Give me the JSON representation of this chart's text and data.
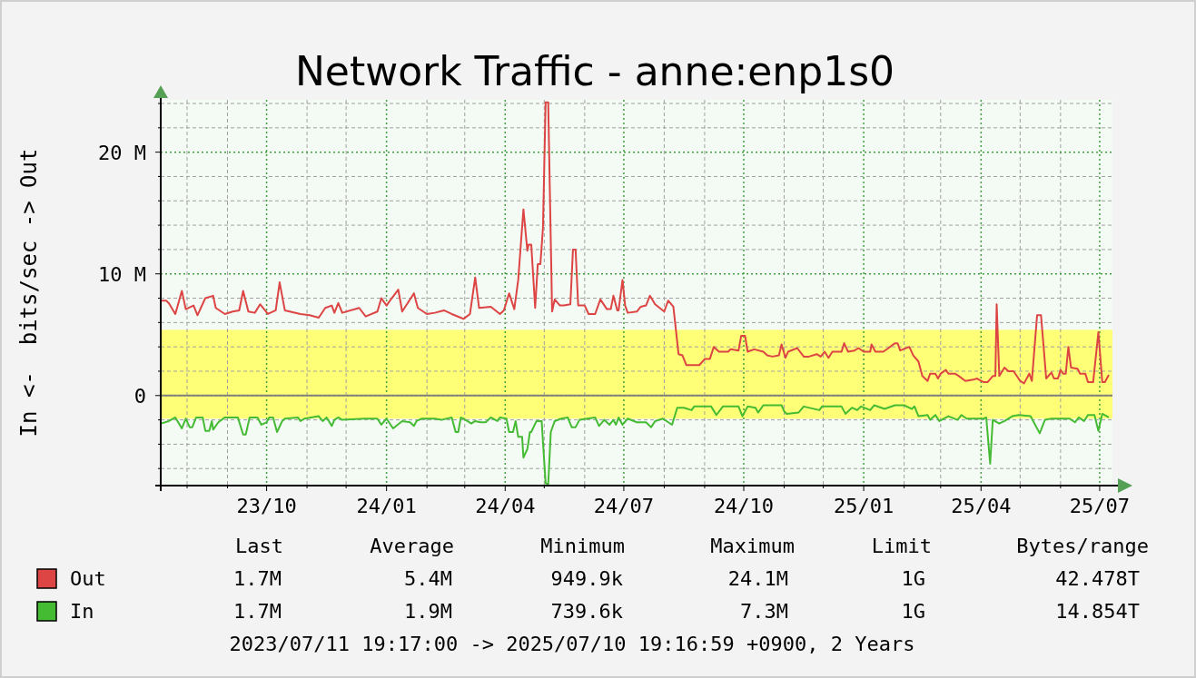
{
  "chart_data": {
    "type": "line",
    "title": "Network Traffic - anne:enp1s0",
    "ylabel": "In <-  bits/sec -> Out",
    "xlim": [
      "2023-07-11T19:17",
      "2025-07-10T19:16"
    ],
    "xticks": [
      {
        "value": "2023-08-01",
        "label": null
      },
      {
        "value": "2023-09-01",
        "label": null
      },
      {
        "value": "2023-10-01",
        "label": "23/10"
      },
      {
        "value": "2023-11-01",
        "label": null
      },
      {
        "value": "2023-12-01",
        "label": null
      },
      {
        "value": "2024-01-01",
        "label": "24/01"
      },
      {
        "value": "2024-02-01",
        "label": null
      },
      {
        "value": "2024-03-01",
        "label": null
      },
      {
        "value": "2024-04-01",
        "label": "24/04"
      },
      {
        "value": "2024-05-01",
        "label": null
      },
      {
        "value": "2024-06-01",
        "label": null
      },
      {
        "value": "2024-07-01",
        "label": "24/07"
      },
      {
        "value": "2024-08-01",
        "label": null
      },
      {
        "value": "2024-09-01",
        "label": null
      },
      {
        "value": "2024-10-01",
        "label": "24/10"
      },
      {
        "value": "2024-11-01",
        "label": null
      },
      {
        "value": "2024-12-01",
        "label": null
      },
      {
        "value": "2025-01-01",
        "label": "25/01"
      },
      {
        "value": "2025-02-01",
        "label": null
      },
      {
        "value": "2025-03-01",
        "label": null
      },
      {
        "value": "2025-04-01",
        "label": "25/04"
      },
      {
        "value": "2025-05-01",
        "label": null
      },
      {
        "value": "2025-06-01",
        "label": null
      },
      {
        "value": "2025-07-01",
        "label": "25/07"
      }
    ],
    "ylim": [
      -7.4,
      24.3
    ],
    "yticks": [
      {
        "value": -6,
        "label": null
      },
      {
        "value": -4,
        "label": null
      },
      {
        "value": -2,
        "label": null
      },
      {
        "value": 0,
        "label": "0"
      },
      {
        "value": 2,
        "label": null
      },
      {
        "value": 4,
        "label": null
      },
      {
        "value": 6,
        "label": null
      },
      {
        "value": 8,
        "label": null
      },
      {
        "value": 10,
        "label": "10 M"
      },
      {
        "value": 12,
        "label": null
      },
      {
        "value": 14,
        "label": null
      },
      {
        "value": 16,
        "label": null
      },
      {
        "value": 18,
        "label": null
      },
      {
        "value": 20,
        "label": "20 M"
      },
      {
        "value": 22,
        "label": null
      },
      {
        "value": 24,
        "label": null
      }
    ],
    "grid": true,
    "legend": "bottom left",
    "bands": [
      {
        "axis": "y",
        "from": -1.9,
        "to": 5.4,
        "color": "#ffff77"
      }
    ],
    "ref_lines": [
      {
        "axis": "y",
        "value": 0,
        "color": "#808080"
      }
    ],
    "series": [
      {
        "name": "Out",
        "color": "#dd4444",
        "x": [
          "2023-07-12",
          "2023-07-16",
          "2023-07-18",
          "2023-07-23",
          "2023-07-28",
          "2023-07-31",
          "2023-08-06",
          "2023-08-09",
          "2023-08-15",
          "2023-08-21",
          "2023-08-23",
          "2023-08-30",
          "2023-09-05",
          "2023-09-10",
          "2023-09-13",
          "2023-09-17",
          "2023-09-22",
          "2023-09-26",
          "2023-10-02",
          "2023-10-08",
          "2023-10-11",
          "2023-10-15",
          "2023-10-27",
          "2023-11-03",
          "2023-11-10",
          "2023-11-15",
          "2023-11-20",
          "2023-11-22",
          "2023-11-25",
          "2023-11-28",
          "2023-12-11",
          "2023-12-16",
          "2023-12-25",
          "2023-12-28",
          "2024-01-01",
          "2024-01-05",
          "2024-01-10",
          "2024-01-13",
          "2024-01-22",
          "2024-01-25",
          "2024-02-01",
          "2024-02-07",
          "2024-02-14",
          "2024-02-20",
          "2024-02-29",
          "2024-03-05",
          "2024-03-09",
          "2024-03-12",
          "2024-03-21",
          "2024-03-28",
          "2024-03-31",
          "2024-04-04",
          "2024-04-08",
          "2024-04-11",
          "2024-04-15",
          "2024-04-18",
          "2024-04-19",
          "2024-04-21",
          "2024-04-24",
          "2024-04-26",
          "2024-04-28",
          "2024-04-30",
          "2024-05-02",
          "2024-05-04",
          "2024-05-07",
          "2024-05-09",
          "2024-05-13",
          "2024-05-16",
          "2024-05-21",
          "2024-05-23",
          "2024-05-25",
          "2024-05-27",
          "2024-06-01",
          "2024-06-04",
          "2024-06-09",
          "2024-06-13",
          "2024-06-18",
          "2024-06-21",
          "2024-06-23",
          "2024-06-26",
          "2024-06-27",
          "2024-06-30",
          "2024-07-02",
          "2024-07-04",
          "2024-07-11",
          "2024-07-14",
          "2024-07-18",
          "2024-07-21",
          "2024-07-25",
          "2024-08-01",
          "2024-08-04",
          "2024-08-08",
          "2024-08-12",
          "2024-08-15",
          "2024-08-18",
          "2024-08-28",
          "2024-09-01",
          "2024-09-05",
          "2024-09-08",
          "2024-09-12",
          "2024-09-19",
          "2024-09-21",
          "2024-09-27",
          "2024-09-29",
          "2024-10-02",
          "2024-10-04",
          "2024-10-09",
          "2024-10-16",
          "2024-10-19",
          "2024-10-23",
          "2024-10-28",
          "2024-10-30",
          "2024-11-02",
          "2024-11-04",
          "2024-11-11",
          "2024-11-16",
          "2024-11-20",
          "2024-11-26",
          "2024-11-29",
          "2024-12-02",
          "2024-12-05",
          "2024-12-08",
          "2024-12-15",
          "2024-12-17",
          "2024-12-20",
          "2024-12-25",
          "2024-12-28",
          "2025-01-01",
          "2025-01-06",
          "2025-01-07",
          "2025-01-10",
          "2025-01-16",
          "2025-01-20",
          "2025-01-25",
          "2025-01-27",
          "2025-01-29",
          "2025-02-05",
          "2025-02-08",
          "2025-02-12",
          "2025-02-15",
          "2025-02-19",
          "2025-02-21",
          "2025-02-25",
          "2025-02-27",
          "2025-03-01",
          "2025-03-05",
          "2025-03-07",
          "2025-03-12",
          "2025-03-15",
          "2025-03-20",
          "2025-03-26",
          "2025-03-29",
          "2025-04-03",
          "2025-04-06",
          "2025-04-10",
          "2025-04-12",
          "2025-04-13",
          "2025-04-15",
          "2025-04-19",
          "2025-04-22",
          "2025-04-26",
          "2025-05-01",
          "2025-05-04",
          "2025-05-08",
          "2025-05-10",
          "2025-05-14",
          "2025-05-17",
          "2025-05-21",
          "2025-05-25",
          "2025-05-27",
          "2025-05-30",
          "2025-06-01",
          "2025-06-03",
          "2025-06-05",
          "2025-06-07",
          "2025-06-09",
          "2025-06-14",
          "2025-06-16",
          "2025-06-20",
          "2025-06-22",
          "2025-06-26",
          "2025-06-30",
          "2025-07-03",
          "2025-07-05",
          "2025-07-08"
        ],
        "values": [
          7.8,
          7.8,
          7.6,
          6.7,
          8.6,
          7.1,
          7.4,
          6.6,
          8.0,
          8.2,
          7.2,
          6.7,
          6.9,
          7.0,
          8.6,
          6.9,
          6.8,
          7.5,
          6.7,
          7.0,
          9.3,
          7.0,
          6.7,
          6.6,
          6.4,
          7.2,
          7.4,
          6.8,
          7.6,
          6.8,
          7.2,
          6.5,
          6.9,
          8.0,
          7.4,
          8.0,
          8.7,
          6.9,
          8.4,
          7.2,
          6.7,
          6.8,
          7.0,
          6.7,
          6.3,
          6.7,
          9.7,
          7.2,
          7.3,
          6.7,
          7.0,
          8.4,
          7.1,
          9.5,
          15.3,
          11.9,
          12.4,
          12.4,
          7.2,
          10.8,
          10.8,
          13.8,
          24.1,
          24.1,
          6.9,
          7.9,
          7.4,
          7.4,
          7.5,
          12.0,
          12.0,
          7.4,
          7.4,
          6.7,
          6.7,
          7.9,
          7.1,
          7.1,
          8.2,
          7.0,
          7.0,
          9.5,
          7.4,
          6.8,
          6.9,
          7.3,
          7.4,
          8.2,
          7.5,
          6.9,
          7.8,
          7.3,
          3.4,
          3.3,
          2.5,
          2.5,
          3.0,
          3.0,
          4.0,
          3.6,
          3.6,
          3.8,
          3.7,
          4.9,
          4.9,
          3.6,
          3.8,
          3.6,
          3.3,
          3.2,
          3.3,
          4.2,
          3.1,
          3.6,
          3.9,
          3.2,
          3.2,
          3.4,
          3.2,
          3.6,
          3.1,
          3.6,
          3.6,
          4.3,
          3.6,
          3.7,
          3.9,
          3.6,
          3.6,
          4.2,
          3.6,
          3.6,
          3.9,
          4.3,
          4.3,
          3.7,
          4.0,
          3.3,
          2.8,
          1.6,
          1.2,
          1.8,
          1.8,
          1.4,
          1.8,
          2.1,
          1.8,
          1.8,
          1.6,
          1.2,
          1.3,
          1.4,
          1.1,
          1.1,
          1.6,
          1.6,
          7.5,
          1.6,
          2.3,
          2.0,
          2.0,
          1.2,
          1.0,
          1.8,
          1.2,
          6.6,
          6.6,
          1.4,
          1.9,
          1.4,
          1.4,
          2.1,
          1.8,
          1.8,
          4.0,
          2.3,
          2.2,
          1.8,
          1.8,
          1.1,
          1.1,
          5.2,
          1.1,
          1.1,
          1.7
        ]
      },
      {
        "name": "In",
        "color": "#44bb33",
        "x": [
          "2023-07-12",
          "2023-07-18",
          "2023-07-23",
          "2023-07-28",
          "2023-07-31",
          "2023-08-03",
          "2023-08-05",
          "2023-08-08",
          "2023-08-13",
          "2023-08-15",
          "2023-08-18",
          "2023-08-20",
          "2023-08-21",
          "2023-08-25",
          "2023-08-30",
          "2023-09-09",
          "2023-09-13",
          "2023-09-15",
          "2023-09-18",
          "2023-09-24",
          "2023-09-27",
          "2023-10-01",
          "2023-10-03",
          "2023-10-06",
          "2023-10-09",
          "2023-10-13",
          "2023-10-15",
          "2023-10-25",
          "2023-10-27",
          "2023-10-30",
          "2023-11-10",
          "2023-11-13",
          "2023-11-16",
          "2023-11-20",
          "2023-11-22",
          "2023-11-25",
          "2023-11-28",
          "2023-12-15",
          "2023-12-25",
          "2023-12-28",
          "2024-01-01",
          "2024-01-06",
          "2024-01-13",
          "2024-01-19",
          "2024-01-22",
          "2024-01-24",
          "2024-01-28",
          "2024-02-07",
          "2024-02-12",
          "2024-02-20",
          "2024-02-23",
          "2024-02-25",
          "2024-02-27",
          "2024-03-03",
          "2024-03-06",
          "2024-03-09",
          "2024-03-13",
          "2024-03-17",
          "2024-03-21",
          "2024-03-26",
          "2024-03-28",
          "2024-04-02",
          "2024-04-04",
          "2024-04-07",
          "2024-04-09",
          "2024-04-11",
          "2024-04-14",
          "2024-04-15",
          "2024-04-18",
          "2024-04-20",
          "2024-04-21",
          "2024-04-25",
          "2024-04-29",
          "2024-05-02",
          "2024-05-04",
          "2024-05-06",
          "2024-05-09",
          "2024-05-14",
          "2024-05-19",
          "2024-05-22",
          "2024-05-25",
          "2024-05-28",
          "2024-06-09",
          "2024-06-12",
          "2024-06-16",
          "2024-06-20",
          "2024-06-23",
          "2024-06-25",
          "2024-06-27",
          "2024-06-30",
          "2024-07-04",
          "2024-07-11",
          "2024-07-18",
          "2024-07-22",
          "2024-07-25",
          "2024-07-31",
          "2024-08-07",
          "2024-08-11",
          "2024-08-16",
          "2024-08-22",
          "2024-08-24",
          "2024-09-06",
          "2024-09-10",
          "2024-09-15",
          "2024-09-27",
          "2024-09-30",
          "2024-10-04",
          "2024-10-10",
          "2024-10-12",
          "2024-10-16",
          "2024-10-21",
          "2024-10-30",
          "2024-11-01",
          "2024-11-03",
          "2024-11-12",
          "2024-11-16",
          "2024-11-28",
          "2024-11-30",
          "2024-12-15",
          "2024-12-18",
          "2024-12-23",
          "2024-12-27",
          "2024-12-30",
          "2025-01-06",
          "2025-01-09",
          "2025-01-17",
          "2025-01-25",
          "2025-02-01",
          "2025-02-07",
          "2025-02-09",
          "2025-02-12",
          "2025-02-19",
          "2025-02-21",
          "2025-02-25",
          "2025-02-28",
          "2025-03-07",
          "2025-03-14",
          "2025-03-17",
          "2025-03-21",
          "2025-04-03",
          "2025-04-05",
          "2025-04-08",
          "2025-04-10",
          "2025-04-15",
          "2025-04-19",
          "2025-04-25",
          "2025-04-30",
          "2025-05-09",
          "2025-05-11",
          "2025-05-16",
          "2025-05-20",
          "2025-05-25",
          "2025-06-08",
          "2025-06-12",
          "2025-06-15",
          "2025-06-19",
          "2025-06-22",
          "2025-06-27",
          "2025-06-30",
          "2025-07-03",
          "2025-07-08"
        ],
        "values": [
          -2.3,
          -2.1,
          -1.8,
          -2.7,
          -1.9,
          -2.6,
          -2.6,
          -1.8,
          -1.8,
          -2.9,
          -2.9,
          -2.1,
          -2.8,
          -2.2,
          -1.8,
          -1.8,
          -3.2,
          -3.2,
          -1.8,
          -1.8,
          -2.4,
          -2.2,
          -1.8,
          -1.8,
          -3.0,
          -2.1,
          -1.9,
          -1.8,
          -2.1,
          -1.9,
          -1.7,
          -2.1,
          -1.8,
          -2.5,
          -2.0,
          -1.8,
          -2.0,
          -1.9,
          -1.9,
          -2.4,
          -1.9,
          -2.7,
          -2.1,
          -2.2,
          -2.5,
          -2.1,
          -1.9,
          -1.9,
          -2.0,
          -1.8,
          -3.0,
          -3.0,
          -1.8,
          -2.1,
          -2.3,
          -2.1,
          -2.2,
          -2.2,
          -1.8,
          -2.1,
          -1.8,
          -1.9,
          -3.0,
          -3.0,
          -2.1,
          -3.4,
          -3.4,
          -5.1,
          -4.4,
          -3.0,
          -3.0,
          -2.1,
          -2.1,
          -7.2,
          -7.3,
          -3.0,
          -2.1,
          -1.9,
          -1.8,
          -2.6,
          -2.6,
          -2.0,
          -1.8,
          -2.5,
          -2.0,
          -2.4,
          -2.0,
          -2.4,
          -1.8,
          -2.4,
          -1.9,
          -2.2,
          -2.2,
          -2.6,
          -2.1,
          -1.9,
          -2.4,
          -1.0,
          -1.0,
          -1.2,
          -0.9,
          -0.9,
          -1.6,
          -0.9,
          -0.9,
          -1.7,
          -0.9,
          -1.0,
          -1.4,
          -0.8,
          -0.8,
          -0.8,
          -1.3,
          -1.5,
          -1.4,
          -0.9,
          -1.2,
          -0.9,
          -0.9,
          -1.5,
          -1.0,
          -1.2,
          -0.9,
          -1.2,
          -0.8,
          -1.1,
          -0.8,
          -0.8,
          -1.1,
          -0.9,
          -1.7,
          -1.6,
          -2.0,
          -1.6,
          -2.1,
          -1.7,
          -2.0,
          -1.6,
          -1.9,
          -1.9,
          -1.8,
          -5.6,
          -2.0,
          -2.3,
          -2.1,
          -1.7,
          -1.6,
          -1.7,
          -2.1,
          -3.1,
          -2.0,
          -1.9,
          -1.9,
          -2.2,
          -1.8,
          -2.1,
          -1.6,
          -1.6,
          -2.9,
          -1.5,
          -1.8
        ]
      }
    ],
    "annotations": [
      "Last",
      "Average",
      "Minimum",
      "Maximum",
      "Limit",
      "Bytes/range",
      "1.7M",
      "5.4M",
      "949.9k",
      "24.1M",
      "1G",
      "42.478T",
      "1.7M",
      "1.9M",
      "739.6k",
      "7.3M",
      "1G",
      "14.854T",
      "2023/07/11 19:17:00 -> 2025/07/10 19:16:59 +0900, 2 Years"
    ]
  }
}
